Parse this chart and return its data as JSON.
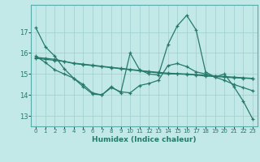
{
  "xlabel": "Humidex (Indice chaleur)",
  "bg_color": "#c2e8e8",
  "grid_color": "#9ecece",
  "line_color": "#267a6a",
  "xlim": [
    -0.5,
    23.5
  ],
  "ylim": [
    12.5,
    18.3
  ],
  "yticks": [
    13,
    14,
    15,
    16,
    17
  ],
  "xticks": [
    0,
    1,
    2,
    3,
    4,
    5,
    6,
    7,
    8,
    9,
    10,
    11,
    12,
    13,
    14,
    15,
    16,
    17,
    18,
    19,
    20,
    21,
    22,
    23
  ],
  "series": [
    {
      "x": [
        0,
        1,
        2,
        3,
        4,
        5,
        6,
        7,
        8,
        9,
        10,
        11,
        12,
        13,
        14,
        15,
        16,
        17,
        18,
        19,
        20,
        21,
        22,
        23
      ],
      "y": [
        17.2,
        16.3,
        null,
        null,
        null,
        null,
        null,
        null,
        null,
        null,
        null,
        null,
        null,
        null,
        16.4,
        17.3,
        17.8,
        17.1,
        null,
        null,
        null,
        null,
        13.7,
        12.85
      ]
    },
    {
      "x": [
        0,
        1,
        2,
        3,
        4,
        5,
        6,
        7,
        8,
        9,
        10,
        11,
        12,
        13,
        14,
        15,
        16,
        17,
        18,
        19,
        20,
        21,
        22,
        23
      ],
      "y": [
        15.8,
        15.75,
        15.7,
        15.6,
        15.5,
        15.45,
        15.4,
        15.35,
        15.3,
        15.25,
        15.2,
        15.15,
        15.1,
        15.05,
        15.0,
        15.0,
        14.98,
        14.95,
        14.9,
        14.88,
        14.85,
        14.82,
        14.8,
        14.78
      ]
    },
    {
      "x": [
        0,
        1,
        2,
        3,
        4,
        5,
        6,
        7,
        8,
        9,
        10,
        11,
        12,
        13,
        14,
        15,
        16,
        17,
        18,
        19,
        20,
        21,
        22,
        23
      ],
      "y": [
        15.75,
        15.7,
        15.65,
        15.6,
        15.52,
        15.47,
        15.42,
        15.37,
        15.32,
        15.27,
        15.22,
        15.17,
        15.12,
        15.08,
        15.04,
        15.02,
        15.0,
        14.97,
        14.94,
        14.91,
        14.88,
        14.85,
        14.82,
        14.79
      ]
    },
    {
      "x": [
        0,
        1,
        2,
        3,
        4,
        5,
        6,
        7,
        8,
        9,
        10,
        11,
        12,
        13,
        14,
        15,
        16,
        17,
        18,
        19,
        20,
        21,
        22,
        23
      ],
      "y": [
        15.85,
        15.55,
        15.2,
        15.0,
        14.8,
        14.5,
        14.1,
        14.0,
        14.35,
        14.15,
        14.1,
        14.45,
        14.55,
        14.7,
        15.4,
        15.5,
        15.35,
        15.1,
        15.0,
        14.85,
        14.7,
        14.5,
        14.35,
        14.2
      ]
    }
  ],
  "series1_full": {
    "x": [
      0,
      1,
      2,
      3,
      4,
      5,
      6,
      7,
      8,
      9,
      10,
      11,
      12,
      13,
      14,
      15,
      16,
      17,
      18,
      19,
      20,
      21,
      22,
      23
    ],
    "y": [
      17.2,
      16.3,
      15.85,
      15.25,
      14.8,
      14.4,
      14.05,
      14.0,
      14.4,
      14.1,
      16.0,
      15.2,
      15.0,
      14.95,
      16.4,
      17.3,
      17.8,
      17.1,
      15.1,
      14.85,
      15.0,
      14.4,
      13.7,
      12.85
    ]
  }
}
